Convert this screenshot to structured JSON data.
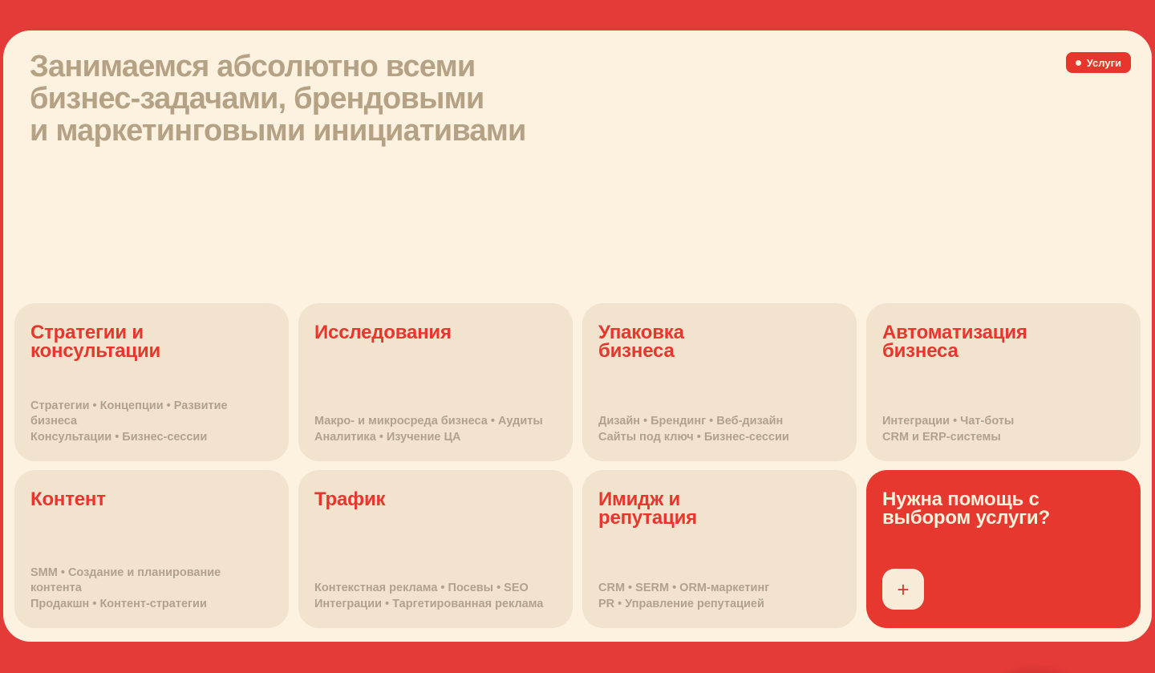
{
  "theme": {
    "page_red": "#e53b38",
    "panel_cream": "#fdf1e0",
    "card_beige": "#f1e3cd",
    "accent_red": "#e8362d",
    "heading_tan": "#b5a284",
    "tag_tan": "#b0a28b"
  },
  "hero": {
    "heading": "Занимаемся абсолютно всеми\nбизнес-задачами, брендовыми\nи маркетинговыми инициативами",
    "badge_label": "Услуги"
  },
  "service_cards": [
    {
      "title": "Стратегии и\nконсультации",
      "tags": [
        "Стратегии • Концепции • Развитие бизнеса",
        "Консультации • Бизнес-сессии"
      ]
    },
    {
      "title": "Исследования",
      "tags": [
        "Макро- и микросреда бизнеса • Аудиты",
        "Аналитика • Изучение ЦА"
      ]
    },
    {
      "title": "Упаковка\nбизнеса",
      "tags": [
        "Дизайн • Брендинг • Веб-дизайн",
        "Сайты под ключ • Бизнес-сессии"
      ]
    },
    {
      "title": "Автоматизация\nбизнеса",
      "tags": [
        "Интеграции • Чат-боты",
        "CRM и ERP-системы"
      ]
    },
    {
      "title": "Контент",
      "tags": [
        "SMM • Создание и планирование контента",
        "Продакшн • Контент-стратегии"
      ]
    },
    {
      "title": "Трафик",
      "tags": [
        "Контекстная реклама • Посевы • SEO",
        "Интеграции • Таргетированная реклама"
      ]
    },
    {
      "title": "Имидж и\nрепутация",
      "tags": [
        "CRM • SERM • ORM-маркетинг",
        "PR • Управление репутацией"
      ]
    }
  ],
  "cta_card": {
    "title": "Нужна помощь с\nвыбором услуги?",
    "button_label": "+"
  }
}
